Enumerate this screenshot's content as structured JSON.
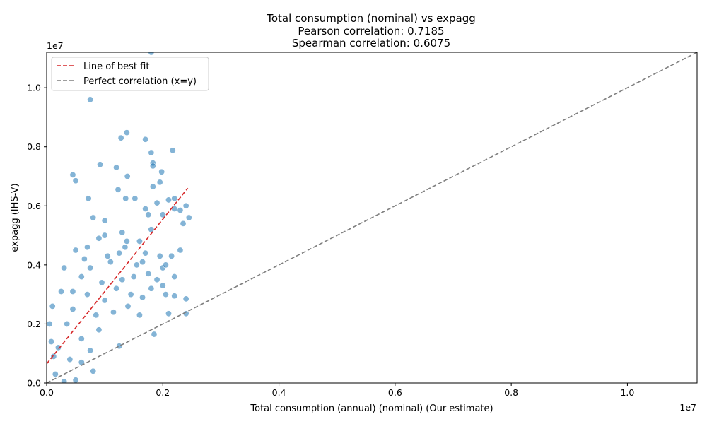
{
  "chart_data": {
    "type": "scatter",
    "title_lines": [
      "Total consumption (nominal) vs expagg",
      "Pearson correlation: 0.7185",
      "Spearman correlation: 0.6075"
    ],
    "xlabel": "Total consumption (annual) (nominal) (Our estimate)",
    "ylabel": "expagg (IHS-V)",
    "x_offset_label": "1e7",
    "y_offset_label": "1e7",
    "xlim": [
      0,
      11200000
    ],
    "ylim": [
      0,
      11200000
    ],
    "x_ticks": [
      {
        "value": 0,
        "label": "0.0"
      },
      {
        "value": 2000000,
        "label": "0.2"
      },
      {
        "value": 4000000,
        "label": "0.4"
      },
      {
        "value": 6000000,
        "label": "0.6"
      },
      {
        "value": 8000000,
        "label": "0.8"
      },
      {
        "value": 10000000,
        "label": "1.0"
      }
    ],
    "y_ticks": [
      {
        "value": 0,
        "label": "0.0"
      },
      {
        "value": 2000000,
        "label": "0.2"
      },
      {
        "value": 4000000,
        "label": "0.4"
      },
      {
        "value": 6000000,
        "label": "0.6"
      },
      {
        "value": 8000000,
        "label": "0.8"
      },
      {
        "value": 10000000,
        "label": "1.0"
      }
    ],
    "grid": false,
    "legend_placement": "top-left",
    "colors": {
      "points": "#1f77b4",
      "best_fit": "#d62728",
      "perfect": "#7f7f7f"
    },
    "series": [
      {
        "kind": "scatter",
        "points": [
          [
            300000,
            50000
          ],
          [
            150000,
            300000
          ],
          [
            500000,
            100000
          ],
          [
            800000,
            400000
          ],
          [
            200000,
            1200000
          ],
          [
            400000,
            800000
          ],
          [
            600000,
            1500000
          ],
          [
            350000,
            2000000
          ],
          [
            450000,
            2500000
          ],
          [
            700000,
            3000000
          ],
          [
            1000000,
            2800000
          ],
          [
            1200000,
            3200000
          ],
          [
            900000,
            1800000
          ],
          [
            1100000,
            4100000
          ],
          [
            1300000,
            3500000
          ],
          [
            600000,
            3600000
          ],
          [
            500000,
            4500000
          ],
          [
            300000,
            3900000
          ],
          [
            700000,
            4600000
          ],
          [
            800000,
            5600000
          ],
          [
            1000000,
            5500000
          ],
          [
            1300000,
            5100000
          ],
          [
            1600000,
            4800000
          ],
          [
            1800000,
            5200000
          ],
          [
            2000000,
            5700000
          ],
          [
            2200000,
            5900000
          ],
          [
            2400000,
            6000000
          ],
          [
            2100000,
            6200000
          ],
          [
            1900000,
            6100000
          ],
          [
            1700000,
            5900000
          ],
          [
            2300000,
            4500000
          ],
          [
            2000000,
            3900000
          ],
          [
            1800000,
            3200000
          ],
          [
            1500000,
            3600000
          ],
          [
            1400000,
            2600000
          ],
          [
            1600000,
            2300000
          ],
          [
            1850000,
            1650000
          ],
          [
            1250000,
            1250000
          ],
          [
            2100000,
            2350000
          ],
          [
            2400000,
            2350000
          ],
          [
            2400000,
            2850000
          ],
          [
            2200000,
            2950000
          ],
          [
            2200000,
            3600000
          ],
          [
            2000000,
            3300000
          ],
          [
            2150000,
            4300000
          ],
          [
            1950000,
            4300000
          ],
          [
            1700000,
            4400000
          ],
          [
            1550000,
            4000000
          ],
          [
            1350000,
            4600000
          ],
          [
            1250000,
            4400000
          ],
          [
            900000,
            4900000
          ],
          [
            1050000,
            4300000
          ],
          [
            750000,
            3900000
          ],
          [
            650000,
            4200000
          ],
          [
            450000,
            3100000
          ],
          [
            250000,
            3100000
          ],
          [
            100000,
            2600000
          ],
          [
            50000,
            2000000
          ],
          [
            80000,
            1400000
          ],
          [
            120000,
            900000
          ],
          [
            600000,
            700000
          ],
          [
            750000,
            1100000
          ],
          [
            850000,
            2300000
          ],
          [
            950000,
            3400000
          ],
          [
            1150000,
            2400000
          ],
          [
            1450000,
            3000000
          ],
          [
            1650000,
            2900000
          ],
          [
            1750000,
            3700000
          ],
          [
            2050000,
            3000000
          ],
          [
            1900000,
            3500000
          ],
          [
            450000,
            7050000
          ],
          [
            500000,
            6850000
          ],
          [
            720000,
            6250000
          ],
          [
            750000,
            9600000
          ],
          [
            920000,
            7400000
          ],
          [
            1200000,
            7300000
          ],
          [
            1230000,
            6550000
          ],
          [
            1280000,
            8300000
          ],
          [
            1380000,
            8480000
          ],
          [
            1390000,
            7000000
          ],
          [
            1700000,
            8250000
          ],
          [
            1800000,
            7800000
          ],
          [
            1830000,
            7450000
          ],
          [
            1830000,
            7350000
          ],
          [
            1830000,
            6650000
          ],
          [
            1980000,
            7150000
          ],
          [
            1950000,
            6800000
          ],
          [
            2170000,
            7880000
          ],
          [
            1800000,
            11200000
          ],
          [
            2200000,
            6250000
          ],
          [
            1360000,
            6250000
          ],
          [
            1520000,
            6250000
          ],
          [
            1380000,
            4800000
          ],
          [
            1650000,
            4100000
          ],
          [
            1000000,
            5000000
          ],
          [
            2050000,
            4000000
          ],
          [
            1750000,
            5700000
          ],
          [
            2300000,
            5850000
          ],
          [
            2350000,
            5400000
          ],
          [
            2450000,
            5600000
          ]
        ]
      },
      {
        "kind": "line",
        "name": "Line of best fit",
        "x": [
          0,
          2430000
        ],
        "y": [
          650000,
          6600000
        ],
        "style": "dashed",
        "color": "#d62728"
      },
      {
        "kind": "line",
        "name": "Perfect correlation (x=y)",
        "x": [
          0,
          11200000
        ],
        "y": [
          0,
          11200000
        ],
        "style": "dashed",
        "color": "#7f7f7f"
      }
    ]
  }
}
